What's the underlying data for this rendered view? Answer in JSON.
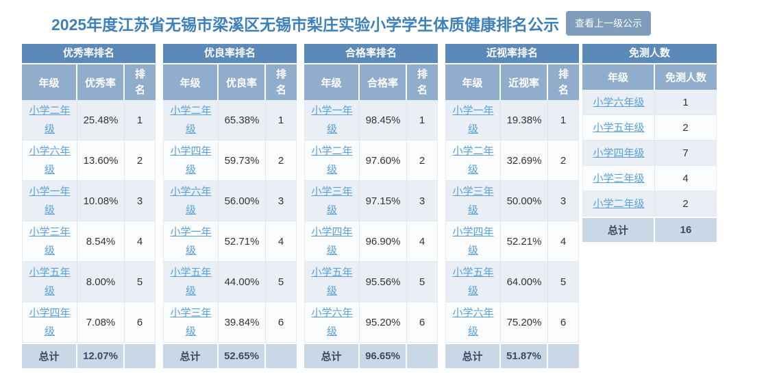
{
  "page": {
    "title": "2025年度江苏省无锡市梁溪区无锡市梨庄实验小学学生体质健康排名公示",
    "back_button_label": "查看上一级公示"
  },
  "colors": {
    "title_text": "#3e80ba",
    "button_bg": "#7f9dbb",
    "table_title_bg": "#5b89b8",
    "column_header_bg": "#90adcb",
    "row_odd_bg": "#eaeff6",
    "row_even_bg": "#fbfcfe",
    "total_row_bg": "#c9d8e7",
    "link": "#58a0d9"
  },
  "rank_tables": [
    {
      "title": "优秀率排名",
      "columns": [
        "年级",
        "优秀率",
        "排名"
      ],
      "rows": [
        {
          "grade": "小学二年级",
          "value": "25.48%",
          "rank": "1"
        },
        {
          "grade": "小学六年级",
          "value": "13.60%",
          "rank": "2"
        },
        {
          "grade": "小学一年级",
          "value": "10.08%",
          "rank": "3"
        },
        {
          "grade": "小学三年级",
          "value": "8.54%",
          "rank": "4"
        },
        {
          "grade": "小学五年级",
          "value": "8.00%",
          "rank": "5"
        },
        {
          "grade": "小学四年级",
          "value": "7.08%",
          "rank": "6"
        }
      ],
      "total": {
        "label": "总计",
        "value": "12.07%"
      }
    },
    {
      "title": "优良率排名",
      "columns": [
        "年级",
        "优良率",
        "排名"
      ],
      "rows": [
        {
          "grade": "小学二年级",
          "value": "65.38%",
          "rank": "1"
        },
        {
          "grade": "小学四年级",
          "value": "59.73%",
          "rank": "2"
        },
        {
          "grade": "小学六年级",
          "value": "56.00%",
          "rank": "3"
        },
        {
          "grade": "小学一年级",
          "value": "52.71%",
          "rank": "4"
        },
        {
          "grade": "小学五年级",
          "value": "44.00%",
          "rank": "5"
        },
        {
          "grade": "小学三年级",
          "value": "39.84%",
          "rank": "6"
        }
      ],
      "total": {
        "label": "总计",
        "value": "52.65%"
      }
    },
    {
      "title": "合格率排名",
      "columns": [
        "年级",
        "合格率",
        "排名"
      ],
      "rows": [
        {
          "grade": "小学一年级",
          "value": "98.45%",
          "rank": "1"
        },
        {
          "grade": "小学二年级",
          "value": "97.60%",
          "rank": "2"
        },
        {
          "grade": "小学三年级",
          "value": "97.15%",
          "rank": "3"
        },
        {
          "grade": "小学四年级",
          "value": "96.90%",
          "rank": "4"
        },
        {
          "grade": "小学五年级",
          "value": "95.56%",
          "rank": "5"
        },
        {
          "grade": "小学六年级",
          "value": "95.20%",
          "rank": "6"
        }
      ],
      "total": {
        "label": "总计",
        "value": "96.65%"
      }
    },
    {
      "title": "近视率排名",
      "columns": [
        "年级",
        "近视率",
        "排名"
      ],
      "rows": [
        {
          "grade": "小学一年级",
          "value": "19.38%",
          "rank": "1"
        },
        {
          "grade": "小学二年级",
          "value": "32.69%",
          "rank": "2"
        },
        {
          "grade": "小学三年级",
          "value": "50.00%",
          "rank": "3"
        },
        {
          "grade": "小学四年级",
          "value": "52.21%",
          "rank": "4"
        },
        {
          "grade": "小学五年级",
          "value": "64.00%",
          "rank": "5"
        },
        {
          "grade": "小学六年级",
          "value": "75.20%",
          "rank": "6"
        }
      ],
      "total": {
        "label": "总计",
        "value": "51.87%"
      }
    }
  ],
  "exempt_table": {
    "title": "免测人数",
    "columns": [
      "年级",
      "免测人数"
    ],
    "rows": [
      {
        "grade": "小学六年级",
        "value": "1"
      },
      {
        "grade": "小学五年级",
        "value": "2"
      },
      {
        "grade": "小学四年级",
        "value": "7"
      },
      {
        "grade": "小学三年级",
        "value": "4"
      },
      {
        "grade": "小学二年级",
        "value": "2"
      }
    ],
    "total": {
      "label": "总计",
      "value": "16"
    }
  }
}
